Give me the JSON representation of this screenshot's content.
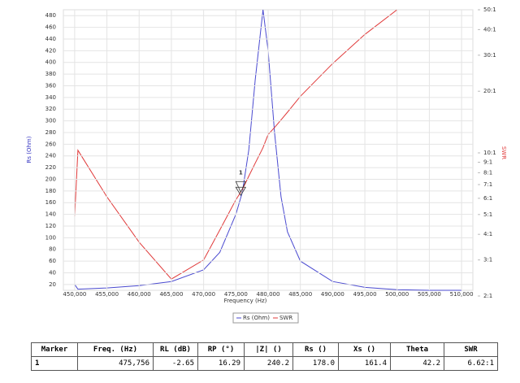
{
  "chart_data": {
    "type": "line",
    "xlabel": "Frequency (Hz)",
    "ylabel": "Rs (Ohm)",
    "y2label": "SWR",
    "x": [
      450000,
      450500,
      455000,
      460000,
      465000,
      470000,
      472500,
      475000,
      476000,
      477000,
      478000,
      479000,
      479200,
      480000,
      481000,
      482000,
      483000,
      485000,
      490000,
      495000,
      500000,
      505000,
      510000
    ],
    "series": [
      {
        "name": "Rs (Ohm)",
        "color": "#4a4ad0",
        "values": [
          20,
          12,
          14,
          18,
          25,
          45,
          75,
          140,
          178,
          250,
          370,
          470,
          490,
          420,
          280,
          170,
          110,
          60,
          25,
          15,
          11,
          10,
          10
        ]
      },
      {
        "name": "SWR",
        "color": "#e03a3a",
        "axis": "y2",
        "values": [
          4.9,
          10.3,
          6.1,
          3.66,
          2.42,
          3.0,
          4.2,
          5.9,
          6.62,
          7.7,
          8.9,
          10.3,
          10.6,
          12.3,
          13.3,
          14.5,
          15.8,
          18.9,
          27.3,
          37.9,
          50,
          null,
          null
        ]
      }
    ],
    "xlim": [
      448250,
      511750
    ],
    "xticks": [
      {
        "value": 450000,
        "label": "450,000"
      },
      {
        "value": 455000,
        "label": "455,000"
      },
      {
        "value": 460000,
        "label": "460,000"
      },
      {
        "value": 465000,
        "label": "465,000"
      },
      {
        "value": 470000,
        "label": "470,000"
      },
      {
        "value": 475000,
        "label": "475,000"
      },
      {
        "value": 480000,
        "label": "480,000"
      },
      {
        "value": 485000,
        "label": "485,000"
      },
      {
        "value": 490000,
        "label": "490,000"
      },
      {
        "value": 495000,
        "label": "495,000"
      },
      {
        "value": 500000,
        "label": "500,000"
      },
      {
        "value": 505000,
        "label": "505,000"
      },
      {
        "value": 510000,
        "label": "510,000"
      }
    ],
    "ylim": [
      10,
      490
    ],
    "yticks": [
      20,
      40,
      60,
      80,
      100,
      120,
      140,
      160,
      180,
      200,
      220,
      240,
      260,
      280,
      300,
      320,
      340,
      360,
      380,
      400,
      420,
      440,
      460,
      480
    ],
    "y2lim": [
      2,
      50
    ],
    "y2log": true,
    "y2ticks": [
      {
        "value": 2,
        "label": "2:1"
      },
      {
        "value": 3,
        "label": "3:1"
      },
      {
        "value": 4,
        "label": "4:1"
      },
      {
        "value": 5,
        "label": "5:1"
      },
      {
        "value": 6,
        "label": "6:1"
      },
      {
        "value": 7,
        "label": "7:1"
      },
      {
        "value": 8,
        "label": "8:1"
      },
      {
        "value": 9,
        "label": "9:1"
      },
      {
        "value": 10,
        "label": "10:1"
      },
      {
        "value": 20,
        "label": "20:1"
      },
      {
        "value": 30,
        "label": "30:1"
      },
      {
        "value": 40,
        "label": "40:1"
      },
      {
        "value": 50,
        "label": "50:1"
      }
    ],
    "grid": true,
    "markers": [
      {
        "label": "1",
        "x": 475756,
        "y": 178
      }
    ]
  },
  "table": {
    "headers": [
      "Marker",
      "Freq. (Hz)",
      "RL (dB)",
      "RP (°)",
      "|Z| ()",
      "Rs ()",
      "Xs ()",
      "Theta",
      "SWR"
    ],
    "rows": [
      [
        "1",
        "475,756",
        "-2.65",
        "16.29",
        "240.2",
        "178.0",
        "161.4",
        "42.2",
        "6.62:1"
      ]
    ]
  }
}
